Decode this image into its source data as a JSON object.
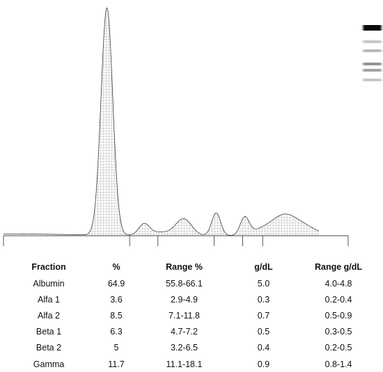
{
  "chart_data": {
    "type": "area",
    "fractions": [
      {
        "name": "Albumin",
        "percent": 64.9,
        "range_percent": "55.8-66.1",
        "gdl": 5.0,
        "range_gdl": "4.0-4.8"
      },
      {
        "name": "Alfa 1",
        "percent": 3.6,
        "range_percent": "2.9-4.9",
        "gdl": 0.3,
        "range_gdl": "0.2-0.4"
      },
      {
        "name": "Alfa 2",
        "percent": 8.5,
        "range_percent": "7.1-11.8",
        "gdl": 0.7,
        "range_gdl": "0.5-0.9"
      },
      {
        "name": "Beta 1",
        "percent": 6.3,
        "range_percent": "4.7-7.2",
        "gdl": 0.5,
        "range_gdl": "0.3-0.5"
      },
      {
        "name": "Beta 2",
        "percent": 5.0,
        "range_percent": "3.2-6.5",
        "gdl": 0.4,
        "range_gdl": "0.2-0.5"
      },
      {
        "name": "Gamma",
        "percent": 11.7,
        "range_percent": "11.1-18.1",
        "gdl": 0.9,
        "range_gdl": "0.8-1.4"
      }
    ],
    "densitometry_curve": {
      "x_range": [
        0,
        100
      ],
      "y_range": [
        0,
        100
      ],
      "peaks": [
        {
          "center": 2.0,
          "height": 0.8,
          "width": 18.0
        },
        {
          "center": 30.0,
          "height": 100.0,
          "width": 1.7
        },
        {
          "center": 40.8,
          "height": 4.5,
          "width": 1.5
        },
        {
          "center": 45.0,
          "height": 1.5,
          "width": 4.0
        },
        {
          "center": 52.3,
          "height": 7.2,
          "width": 2.3
        },
        {
          "center": 61.7,
          "height": 10.0,
          "width": 1.3
        },
        {
          "center": 70.0,
          "height": 7.6,
          "width": 1.3
        },
        {
          "center": 75.7,
          "height": 3.0,
          "width": 3.5
        },
        {
          "center": 81.4,
          "height": 7.5,
          "width": 3.2
        },
        {
          "center": 86.2,
          "height": 3.6,
          "width": 3.2
        },
        {
          "center": 90.0,
          "height": 1.2,
          "width": 3.0
        }
      ],
      "fraction_boundaries": [
        0,
        36.6,
        44.8,
        61.1,
        69.4,
        75.2,
        100
      ]
    },
    "gel_band_intensities": [
      0.0,
      0.96,
      0.22,
      0.28,
      0.42,
      0.36,
      0.22
    ],
    "xlabel": "",
    "ylabel": ""
  },
  "table": {
    "headers": {
      "fraction": "Fraction",
      "percent": "%",
      "range_percent": "Range %",
      "gdl": "g/dL",
      "range_gdl": "Range g/dL"
    }
  },
  "colors": {
    "curve_outline": "#3a3a3a",
    "grid": "#6e6e6e",
    "fill": "#ffffff",
    "axis": "#444444"
  }
}
